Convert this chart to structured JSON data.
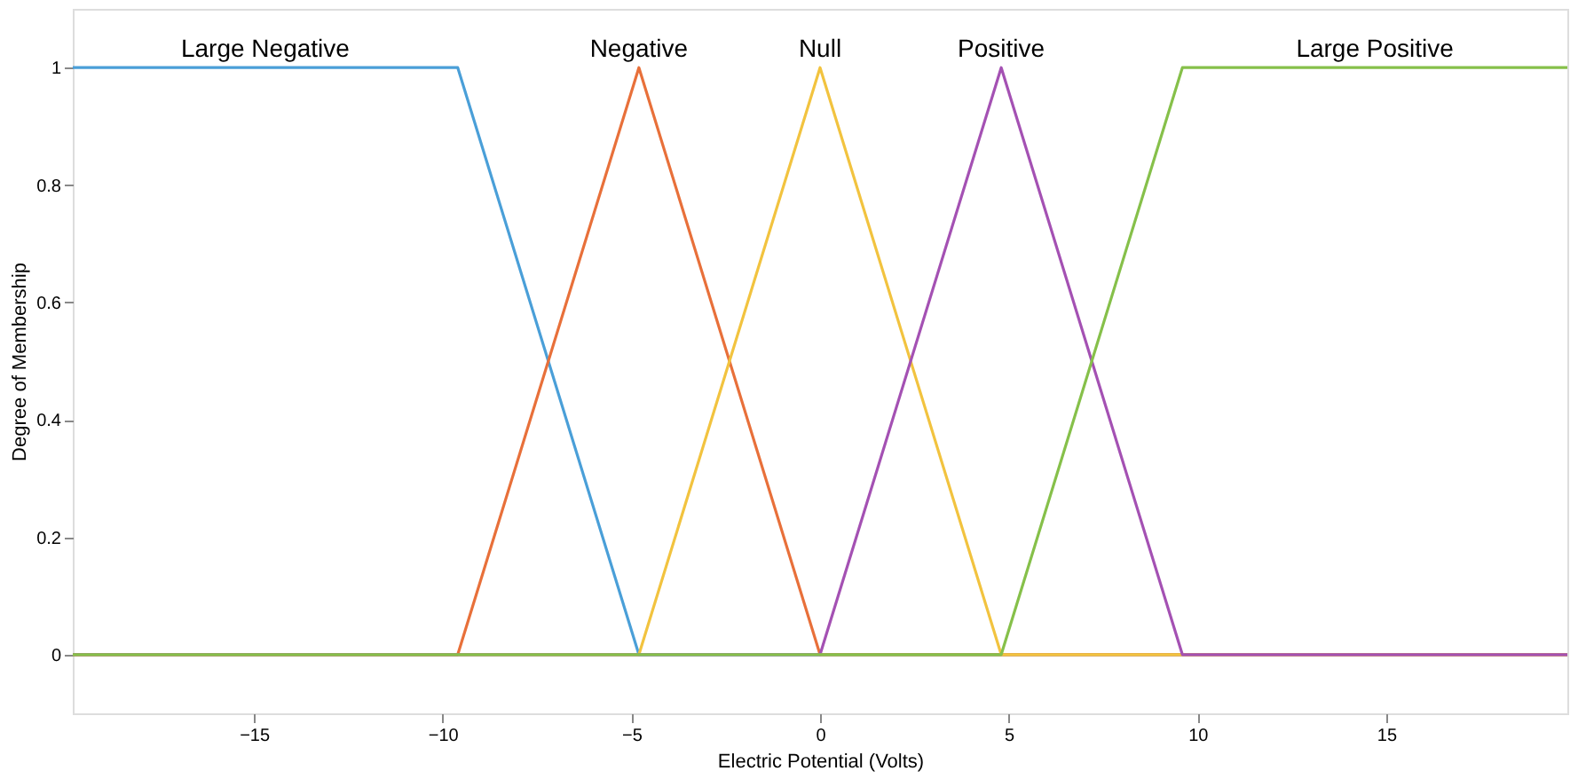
{
  "chart_data": {
    "type": "line",
    "xlabel": "Electric Potential (Volts)",
    "ylabel": "Degree of Membership",
    "xlim": [
      -19.8,
      19.8
    ],
    "ylim": [
      -0.1,
      1.1
    ],
    "xticks": [
      -15,
      -10,
      -5,
      0,
      5,
      10,
      15
    ],
    "yticks": [
      {
        "value": 0,
        "label": "0"
      },
      0.2,
      0.4,
      0.6,
      0.8,
      {
        "value": 1,
        "label": "1"
      }
    ],
    "grid": false,
    "legend": false,
    "marker": "none",
    "line_style": "solid",
    "series": [
      {
        "name": "Large Negative",
        "color": "#4a9fd8",
        "x": [
          -19.8,
          -9.6,
          -4.8,
          19.8
        ],
        "values": [
          1,
          1,
          0,
          0
        ]
      },
      {
        "name": "Negative",
        "color": "#e8703a",
        "x": [
          -19.8,
          -9.6,
          -4.8,
          0,
          19.8
        ],
        "values": [
          0,
          0,
          1,
          0,
          0
        ]
      },
      {
        "name": "Null",
        "color": "#f2c33f",
        "x": [
          -19.8,
          -4.8,
          0,
          4.8,
          19.8
        ],
        "values": [
          0,
          0,
          1,
          0,
          0
        ]
      },
      {
        "name": "Positive",
        "color": "#a451b3",
        "x": [
          -19.8,
          0,
          4.8,
          9.6,
          19.8
        ],
        "values": [
          0,
          0,
          1,
          0,
          0
        ]
      },
      {
        "name": "Large Positive",
        "color": "#86c04a",
        "x": [
          -19.8,
          4.8,
          9.6,
          19.8
        ],
        "values": [
          0,
          0,
          1,
          1
        ]
      }
    ]
  }
}
